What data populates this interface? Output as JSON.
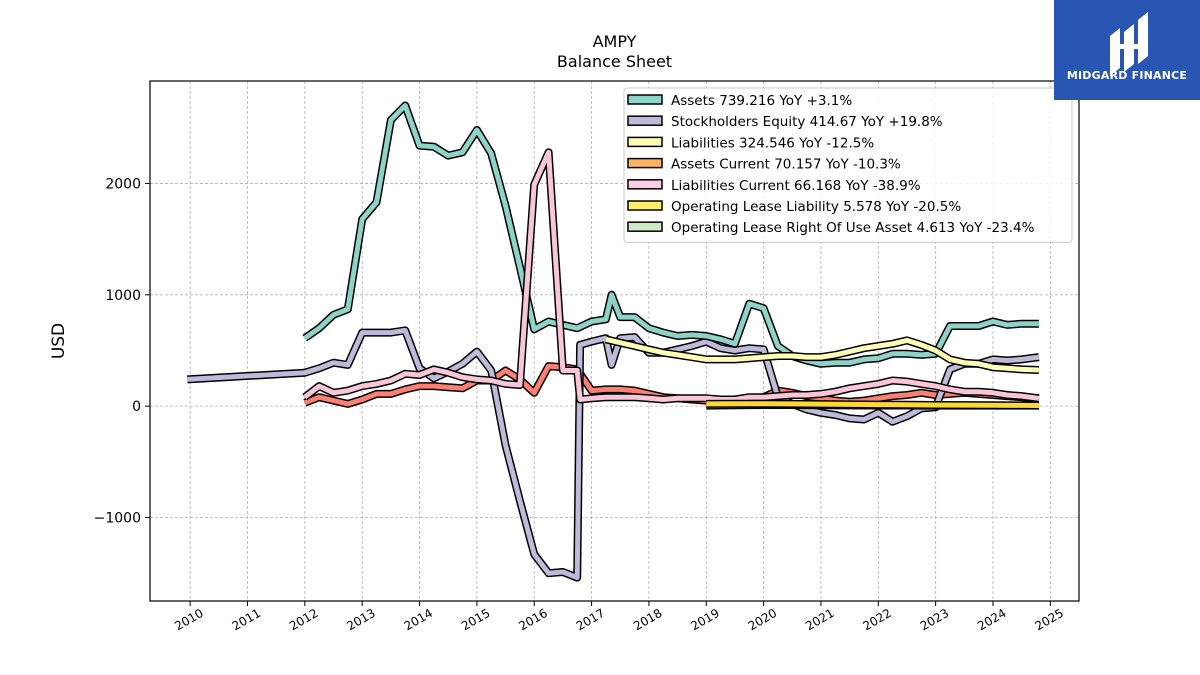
{
  "chart_data": {
    "type": "line",
    "title": "AMPY",
    "subtitle": "Balance  Sheet",
    "ylabel": "USD",
    "xlabel": "",
    "xlim": [
      2009.3,
      2025.5
    ],
    "ylim": [
      -1750,
      2920
    ],
    "x_ticks": [
      "2010",
      "2011",
      "2012",
      "2013",
      "2014",
      "2015",
      "2016",
      "2017",
      "2018",
      "2019",
      "2020",
      "2021",
      "2022",
      "2023",
      "2024",
      "2025"
    ],
    "y_ticks": [
      {
        "value": -1000,
        "label": "−1000"
      },
      {
        "value": 0,
        "label": "0"
      },
      {
        "value": 1000,
        "label": "1000"
      },
      {
        "value": 2000,
        "label": "2000"
      }
    ],
    "grid": true,
    "legend_position": "top-right",
    "series": [
      {
        "name": "Assets  739.216 YoY +3.1%",
        "color": "#8dd3c7",
        "x": [
          2012.0,
          2012.25,
          2012.5,
          2012.75,
          2013.0,
          2013.25,
          2013.5,
          2013.75,
          2014.0,
          2014.25,
          2014.5,
          2014.75,
          2015.0,
          2015.25,
          2015.5,
          2015.75,
          2016.0,
          2016.25,
          2016.5,
          2016.75,
          2017.0,
          2017.25,
          2017.35,
          2017.5,
          2017.75,
          2018.0,
          2018.25,
          2018.5,
          2018.75,
          2019.0,
          2019.25,
          2019.5,
          2019.75,
          2020.0,
          2020.25,
          2020.5,
          2020.75,
          2021.0,
          2021.25,
          2021.5,
          2021.75,
          2022.0,
          2022.25,
          2022.5,
          2022.75,
          2023.0,
          2023.25,
          2023.5,
          2023.75,
          2024.0,
          2024.25,
          2024.5,
          2024.8
        ],
        "y": [
          610,
          700,
          820,
          870,
          1680,
          1830,
          2570,
          2700,
          2340,
          2330,
          2250,
          2280,
          2480,
          2270,
          1800,
          1250,
          690,
          760,
          730,
          700,
          760,
          780,
          1000,
          800,
          800,
          700,
          660,
          630,
          640,
          630,
          600,
          560,
          920,
          880,
          540,
          450,
          410,
          380,
          390,
          390,
          420,
          430,
          470,
          470,
          460,
          470,
          720,
          720,
          720,
          760,
          730,
          740,
          740
        ]
      },
      {
        "name": "Stockholders Equity  414.67 YoY +19.8%",
        "color": "#bebada",
        "x": [
          2009.95,
          2012.0,
          2012.25,
          2012.5,
          2012.75,
          2013.0,
          2013.25,
          2013.5,
          2013.75,
          2014.0,
          2014.25,
          2014.5,
          2014.75,
          2015.0,
          2015.25,
          2015.5,
          2015.75,
          2016.0,
          2016.25,
          2016.5,
          2016.75,
          2016.8,
          2017.0,
          2017.25,
          2017.35,
          2017.5,
          2017.75,
          2018.0,
          2018.25,
          2018.5,
          2018.75,
          2019.0,
          2019.25,
          2019.5,
          2019.75,
          2020.0,
          2020.25,
          2020.5,
          2020.75,
          2021.0,
          2021.25,
          2021.5,
          2021.75,
          2022.0,
          2022.25,
          2022.5,
          2022.75,
          2023.0,
          2023.25,
          2023.5,
          2023.75,
          2024.0,
          2024.25,
          2024.5,
          2024.8
        ],
        "y": [
          240,
          300,
          340,
          390,
          370,
          660,
          660,
          660,
          680,
          340,
          250,
          310,
          380,
          490,
          320,
          -350,
          -850,
          -1330,
          -1500,
          -1490,
          -1540,
          550,
          580,
          610,
          370,
          610,
          620,
          480,
          480,
          510,
          540,
          580,
          520,
          500,
          520,
          510,
          80,
          20,
          -30,
          -60,
          -80,
          -110,
          -120,
          -60,
          -140,
          -90,
          -20,
          -10,
          330,
          380,
          380,
          420,
          410,
          420,
          440
        ]
      },
      {
        "name": "Liabilities  324.546 YoY -12.5%",
        "color": "#ffffb3",
        "x": [
          2017.25,
          2017.5,
          2017.75,
          2018.0,
          2018.25,
          2018.5,
          2018.75,
          2019.0,
          2019.25,
          2019.5,
          2019.75,
          2020.0,
          2020.25,
          2020.5,
          2020.75,
          2021.0,
          2021.25,
          2021.5,
          2021.75,
          2022.0,
          2022.25,
          2022.5,
          2022.75,
          2023.0,
          2023.25,
          2023.5,
          2023.75,
          2024.0,
          2024.25,
          2024.5,
          2024.8
        ],
        "y": [
          600,
          570,
          540,
          510,
          480,
          460,
          440,
          420,
          420,
          420,
          430,
          440,
          450,
          450,
          440,
          440,
          460,
          490,
          520,
          540,
          560,
          590,
          550,
          500,
          420,
          390,
          380,
          350,
          340,
          330,
          325
        ]
      },
      {
        "name": "Assets Current  70.157 YoY -10.3%",
        "color": "#fb8072",
        "x": [
          2012.0,
          2012.25,
          2012.5,
          2012.75,
          2013.0,
          2013.25,
          2013.5,
          2013.75,
          2014.0,
          2014.25,
          2014.5,
          2014.75,
          2015.0,
          2015.25,
          2015.5,
          2015.75,
          2016.0,
          2016.25,
          2016.5,
          2016.75,
          2017.0,
          2017.25,
          2017.5,
          2017.75,
          2018.0,
          2018.25,
          2018.5,
          2018.75,
          2019.0,
          2019.25,
          2019.5,
          2019.75,
          2020.0,
          2020.25,
          2020.5,
          2020.75,
          2021.0,
          2021.25,
          2021.5,
          2021.75,
          2022.0,
          2022.25,
          2022.5,
          2022.75,
          2023.0,
          2023.25,
          2023.5,
          2023.75,
          2024.0,
          2024.25,
          2024.5,
          2024.8
        ],
        "y": [
          30,
          80,
          50,
          20,
          60,
          110,
          110,
          150,
          180,
          180,
          170,
          160,
          230,
          230,
          320,
          240,
          120,
          360,
          350,
          330,
          140,
          150,
          150,
          140,
          110,
          80,
          70,
          60,
          50,
          50,
          60,
          70,
          80,
          140,
          120,
          90,
          70,
          50,
          40,
          50,
          70,
          90,
          100,
          120,
          100,
          110,
          120,
          110,
          100,
          90,
          80,
          70
        ]
      },
      {
        "name": "Liabilities Current  66.168 YoY -38.9%",
        "color": "#f8c6d8",
        "x": [
          2012.0,
          2012.25,
          2012.5,
          2012.75,
          2013.0,
          2013.25,
          2013.5,
          2013.75,
          2014.0,
          2014.25,
          2014.5,
          2014.75,
          2015.0,
          2015.25,
          2015.5,
          2015.75,
          2016.0,
          2016.25,
          2016.5,
          2016.75,
          2016.8,
          2017.0,
          2017.25,
          2017.5,
          2017.75,
          2018.0,
          2018.25,
          2018.5,
          2018.75,
          2019.0,
          2019.25,
          2019.5,
          2019.75,
          2020.0,
          2020.25,
          2020.5,
          2020.75,
          2021.0,
          2021.25,
          2021.5,
          2021.75,
          2022.0,
          2022.25,
          2022.5,
          2022.75,
          2023.0,
          2023.25,
          2023.5,
          2023.75,
          2024.0,
          2024.25,
          2024.5,
          2024.8
        ],
        "y": [
          80,
          180,
          120,
          140,
          180,
          200,
          230,
          290,
          280,
          330,
          300,
          260,
          240,
          230,
          200,
          190,
          1990,
          2280,
          320,
          320,
          60,
          70,
          80,
          80,
          80,
          70,
          60,
          70,
          70,
          70,
          60,
          60,
          80,
          80,
          90,
          100,
          100,
          110,
          130,
          160,
          180,
          200,
          230,
          220,
          200,
          180,
          150,
          130,
          130,
          120,
          100,
          90,
          70
        ]
      },
      {
        "name": "Operating Lease Liability  5.578 YoY -20.5%",
        "color": "#fdd835",
        "x": [
          2019.0,
          2019.5,
          2020.0,
          2020.5,
          2021.0,
          2021.5,
          2022.0,
          2022.5,
          2023.0,
          2023.5,
          2024.0,
          2024.5,
          2024.8
        ],
        "y": [
          20,
          22,
          22,
          20,
          18,
          16,
          14,
          12,
          10,
          9,
          8,
          7,
          6
        ]
      },
      {
        "name": "Operating Lease Right Of Use Asset  4.613 YoY -23.4%",
        "color": "#ccebc5",
        "x": [
          2019.0,
          2019.5,
          2020.0,
          2020.5,
          2021.0,
          2021.5,
          2022.0,
          2022.5,
          2023.0,
          2023.5,
          2024.0,
          2024.5,
          2024.8
        ],
        "y": [
          5,
          8,
          10,
          10,
          8,
          7,
          6,
          6,
          5,
          5,
          5,
          5,
          5
        ]
      }
    ],
    "legend_colors": [
      "#8dd3c7",
      "#bebada",
      "#ffffb3",
      "#fdb462",
      "#fccde5",
      "#ffed6f",
      "#ccebc5"
    ]
  },
  "logo": {
    "text": "MIDGARD FINANCE"
  }
}
